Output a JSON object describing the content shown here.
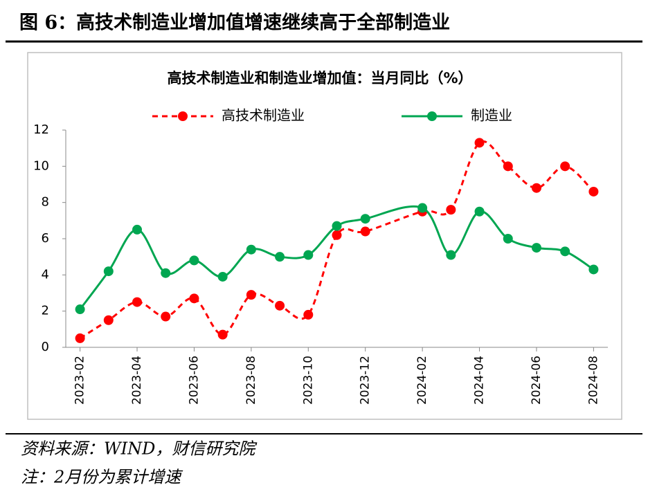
{
  "header": {
    "title": "图 6：高技术制造业增加值增速继续高于全部制造业"
  },
  "chart_data": {
    "type": "line",
    "title": "高技术制造业和制造业增加值：当月同比（%）",
    "x": [
      "2023-02",
      "2023-03",
      "2023-04",
      "2023-05",
      "2023-06",
      "2023-07",
      "2023-08",
      "2023-09",
      "2023-10",
      "2023-11",
      "2023-12",
      "2024-02",
      "2024-03",
      "2024-04",
      "2024-05",
      "2024-06",
      "2024-07",
      "2024-08"
    ],
    "xticks": [
      "2023-02",
      "2023-04",
      "2023-06",
      "2023-08",
      "2023-10",
      "2023-12",
      "2024-02",
      "2024-04",
      "2024-06",
      "2024-08"
    ],
    "series": [
      {
        "name": "高技术制造业",
        "color": "#ff0000",
        "dashed": true,
        "values": [
          0.5,
          1.5,
          2.5,
          1.7,
          2.7,
          0.7,
          2.9,
          2.3,
          1.8,
          6.2,
          6.4,
          7.5,
          7.6,
          11.3,
          10.0,
          8.8,
          10.0,
          8.6
        ]
      },
      {
        "name": "制造业",
        "color": "#00a651",
        "dashed": false,
        "values": [
          2.1,
          4.2,
          6.5,
          4.1,
          4.8,
          3.9,
          5.4,
          5.0,
          5.1,
          6.7,
          7.1,
          7.7,
          5.1,
          7.5,
          6.0,
          5.5,
          5.3,
          4.3
        ]
      }
    ],
    "ylim": [
      0,
      12
    ],
    "yticks": [
      0,
      2,
      4,
      6,
      8,
      10,
      12
    ],
    "grid": false,
    "smooth": true
  },
  "footer": {
    "source": "资料来源：WIND，财信研究院",
    "note": "注：2月份为累计增速"
  }
}
